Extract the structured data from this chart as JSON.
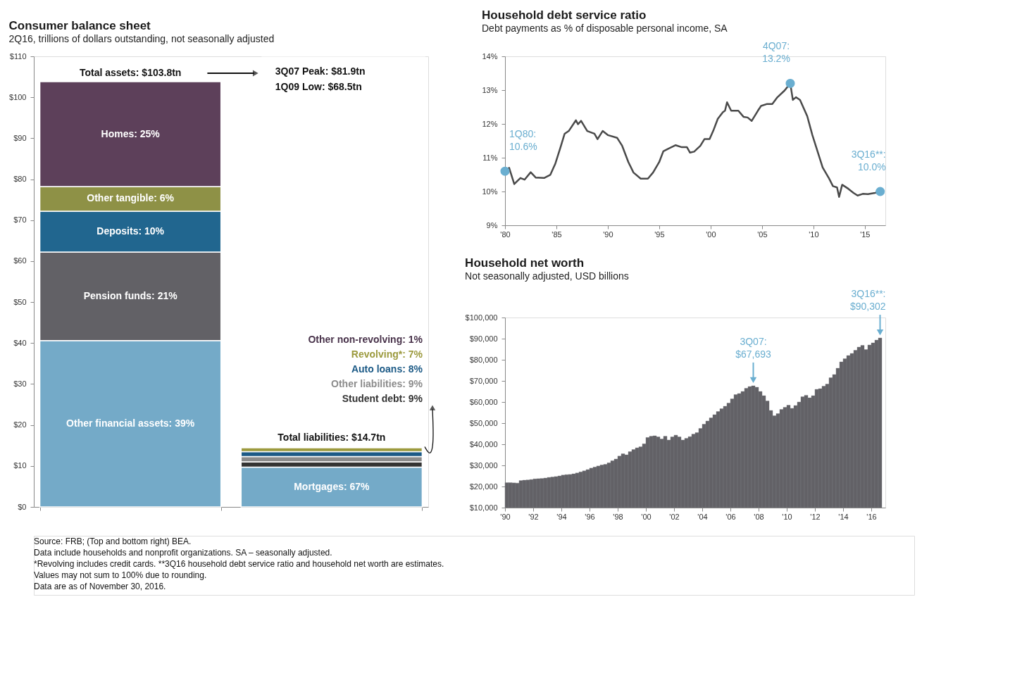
{
  "chart_data": [
    {
      "type": "bar",
      "stacked": true,
      "title": "Consumer balance sheet",
      "subtitle": "2Q16, trillions of dollars outstanding, not seasonally adjusted",
      "categories": [
        null,
        null
      ],
      "series": [
        {
          "name": "Other financial assets: 39%",
          "color": "#74aac8",
          "values": [
            40.6,
            null
          ]
        },
        {
          "name": "Pension funds: 21%",
          "color": "#626166",
          "values": [
            21.6,
            null
          ]
        },
        {
          "name": "Deposits: 10%",
          "color": "#21668f",
          "values": [
            10.0,
            null
          ]
        },
        {
          "name": "Other tangible: 6%",
          "color": "#8e9146",
          "values": [
            6.0,
            null
          ]
        },
        {
          "name": "Homes: 25%",
          "color": "#5d405a",
          "values": [
            25.6,
            null
          ]
        },
        {
          "name": "Mortgages: 67%",
          "color": "#74aac8",
          "values": [
            null,
            9.7
          ]
        },
        {
          "name": "Student debt: 9%",
          "color": "#333333",
          "values": [
            null,
            1.3
          ]
        },
        {
          "name": "Other liabilities: 9%",
          "color": "#8c8c8c",
          "values": [
            null,
            1.3
          ]
        },
        {
          "name": "Auto loans: 8%",
          "color": "#1c5a86",
          "values": [
            null,
            1.2
          ]
        },
        {
          "name": "Revolving*: 7%",
          "color": "#9c9a3e",
          "values": [
            null,
            1.0
          ]
        },
        {
          "name": "Other non-revolving: 1%",
          "color": "#48324a",
          "values": [
            null,
            0.2
          ]
        }
      ],
      "totals": [
        "Total assets: $103.8tn",
        "Total liabilities: $14.7tn"
      ],
      "ylim": [
        0,
        110
      ],
      "yticks": [
        {
          "value": 0,
          "label": "$0"
        },
        {
          "value": 10,
          "label": "$10"
        },
        {
          "value": 20,
          "label": "$20"
        },
        {
          "value": 30,
          "label": "$30"
        },
        {
          "value": 40,
          "label": "$40"
        },
        {
          "value": 50,
          "label": "$50"
        },
        {
          "value": 60,
          "label": "$60"
        },
        {
          "value": 70,
          "label": "$70"
        },
        {
          "value": 80,
          "label": "$80"
        },
        {
          "value": 90,
          "label": "$90"
        },
        {
          "value": 100,
          "label": "$100"
        },
        {
          "value": 110,
          "label": "$110"
        }
      ],
      "tick_labels": "y",
      "grid": false,
      "annotations": [
        "3Q07 Peak: $81.9tn",
        "1Q09 Low:  $68.5tn",
        "Source: FRB; (Top and bottom right) BEA.",
        "Data include households and nonprofit organizations. SA – seasonally adjusted.",
        "*Revolving includes credit cards. **3Q16 household debt service ratio and household net worth are estimates.",
        "Values may not sum to 100% due to rounding.",
        "Data are as of November 30, 2016."
      ]
    },
    {
      "type": "line",
      "title": "Household debt service ratio",
      "subtitle": "Debt payments as % of disposable personal income, SA",
      "xlim": [
        1980,
        2017
      ],
      "xticks": [
        {
          "value": 1980,
          "label": "'80"
        },
        {
          "value": 1985,
          "label": "'85"
        },
        {
          "value": 1990,
          "label": "'90"
        },
        {
          "value": 1995,
          "label": "'95"
        },
        {
          "value": 2000,
          "label": "'00"
        },
        {
          "value": 2005,
          "label": "'05"
        },
        {
          "value": 2010,
          "label": "'10"
        },
        {
          "value": 2015,
          "label": "'15"
        }
      ],
      "ylim": [
        9,
        14
      ],
      "yticks": [
        {
          "value": 9,
          "label": "9%"
        },
        {
          "value": 10,
          "label": "10%"
        },
        {
          "value": 11,
          "label": "11%"
        },
        {
          "value": 12,
          "label": "12%"
        },
        {
          "value": 13,
          "label": "13%"
        },
        {
          "value": 14,
          "label": "14%"
        }
      ],
      "grid": false,
      "line_style": "solid",
      "series": [
        {
          "type": "line",
          "color": "#4a4a4a",
          "x": [
            1980,
            1980.4,
            1980.9,
            1981.5,
            1981.9,
            1982.5,
            1983.0,
            1983.8,
            1984.4,
            1984.9,
            1985.4,
            1985.8,
            1986.2,
            1986.9,
            1987.1,
            1987.4,
            1988.0,
            1988.7,
            1989.0,
            1989.5,
            1990.0,
            1990.9,
            1991.4,
            1992.0,
            1992.5,
            1993.2,
            1993.9,
            1994.4,
            1995.0,
            1995.4,
            1995.9,
            1996.6,
            1997.2,
            1997.7,
            1998.0,
            1998.4,
            1999.0,
            1999.4,
            1999.9,
            2000.3,
            2000.7,
            2001.2,
            2001.4,
            2001.6,
            2002.0,
            2002.7,
            2003.2,
            2003.6,
            2004.0,
            2004.6,
            2004.9,
            2005.5,
            2006.0,
            2006.5,
            2007.2,
            2007.75,
            2008.0,
            2008.3,
            2008.7,
            2009.4,
            2009.9,
            2010.4,
            2010.9,
            2011.5,
            2011.9,
            2012.3,
            2012.5,
            2012.8,
            2013.4,
            2013.9,
            2014.3,
            2014.8,
            2015.3,
            2016.0,
            2016.5
          ],
          "values": [
            10.6,
            10.7,
            10.22,
            10.4,
            10.35,
            10.57,
            10.41,
            10.4,
            10.49,
            10.83,
            11.31,
            11.71,
            11.79,
            12.11,
            11.99,
            12.09,
            11.79,
            11.71,
            11.55,
            11.79,
            11.67,
            11.59,
            11.35,
            10.87,
            10.56,
            10.38,
            10.38,
            10.56,
            10.87,
            11.19,
            11.27,
            11.37,
            11.31,
            11.31,
            11.15,
            11.18,
            11.35,
            11.55,
            11.55,
            11.83,
            12.15,
            12.35,
            12.39,
            12.64,
            12.39,
            12.39,
            12.21,
            12.19,
            12.09,
            12.39,
            12.53,
            12.59,
            12.59,
            12.79,
            12.99,
            13.2,
            12.71,
            12.79,
            12.71,
            12.23,
            11.67,
            11.19,
            10.71,
            10.4,
            10.16,
            10.12,
            9.84,
            10.2,
            10.08,
            9.96,
            9.88,
            9.93,
            9.92,
            9.96,
            10.0
          ]
        },
        {
          "type": "scatter",
          "color": "#6aaed0",
          "x": [
            1980,
            2007.75,
            2016.5
          ],
          "values": [
            10.6,
            13.2,
            10.0
          ]
        }
      ],
      "annotations": [
        {
          "text": "1Q80: 10.6%",
          "x": 1980,
          "y": 10.6
        },
        {
          "text": "4Q07: 13.2%",
          "x": 2007.75,
          "y": 13.2
        },
        {
          "text": "3Q16**: 10.0%",
          "x": 2016.5,
          "y": 10.0
        }
      ]
    },
    {
      "type": "bar",
      "title": "Household net worth",
      "subtitle": "Not seasonally adjusted, USD billions",
      "color": "#626166",
      "x": [
        1990,
        1990.25,
        1990.5,
        1990.75,
        1991,
        1991.25,
        1991.5,
        1991.75,
        1992,
        1992.25,
        1992.5,
        1992.75,
        1993,
        1993.25,
        1993.5,
        1993.75,
        1994,
        1994.25,
        1994.5,
        1994.75,
        1995,
        1995.25,
        1995.5,
        1995.75,
        1996,
        1996.25,
        1996.5,
        1996.75,
        1997,
        1997.25,
        1997.5,
        1997.75,
        1998,
        1998.25,
        1998.5,
        1998.75,
        1999,
        1999.25,
        1999.5,
        1999.75,
        2000,
        2000.25,
        2000.5,
        2000.75,
        2001,
        2001.25,
        2001.5,
        2001.75,
        2002,
        2002.25,
        2002.5,
        2002.75,
        2003,
        2003.25,
        2003.5,
        2003.75,
        2004,
        2004.25,
        2004.5,
        2004.75,
        2005,
        2005.25,
        2005.5,
        2005.75,
        2006,
        2006.25,
        2006.5,
        2006.75,
        2007,
        2007.25,
        2007.5,
        2007.75,
        2008,
        2008.25,
        2008.5,
        2008.75,
        2009,
        2009.25,
        2009.5,
        2009.75,
        2010,
        2010.25,
        2010.5,
        2010.75,
        2011,
        2011.25,
        2011.5,
        2011.75,
        2012,
        2012.25,
        2012.5,
        2012.75,
        2013,
        2013.25,
        2013.5,
        2013.75,
        2014,
        2014.25,
        2014.5,
        2014.75,
        2015,
        2015.25,
        2015.5,
        2015.75,
        2016,
        2016.25,
        2016.5
      ],
      "values": [
        21800,
        21800,
        21700,
        21600,
        22800,
        23000,
        23100,
        23300,
        23600,
        23700,
        23800,
        24000,
        24300,
        24500,
        24700,
        25000,
        25400,
        25600,
        25700,
        26000,
        26400,
        26900,
        27400,
        28000,
        28700,
        29200,
        29700,
        30200,
        30500,
        31200,
        32200,
        33000,
        34400,
        35500,
        35000,
        36500,
        37500,
        38300,
        38800,
        40200,
        43200,
        43800,
        44000,
        43500,
        42500,
        43800,
        42000,
        43500,
        44300,
        43500,
        42000,
        42800,
        43600,
        44800,
        45500,
        47500,
        49500,
        51000,
        52500,
        54000,
        55500,
        56800,
        58000,
        59500,
        61500,
        63500,
        64000,
        65000,
        66500,
        67300,
        67693,
        67000,
        65000,
        63000,
        60500,
        56000,
        53500,
        54500,
        56500,
        57500,
        58500,
        57000,
        58300,
        60000,
        62500,
        63200,
        62000,
        63000,
        66000,
        66300,
        67500,
        68500,
        71500,
        73000,
        76000,
        79000,
        80500,
        82000,
        83000,
        84500,
        86000,
        86800,
        84800,
        87000,
        88000,
        89300,
        90302
      ],
      "xlim": [
        1990,
        2017
      ],
      "xticks": [
        {
          "value": 1990,
          "label": "'90"
        },
        {
          "value": 1992,
          "label": "'92"
        },
        {
          "value": 1994,
          "label": "'94"
        },
        {
          "value": 1996,
          "label": "'96"
        },
        {
          "value": 1998,
          "label": "'98"
        },
        {
          "value": 2000,
          "label": "'00"
        },
        {
          "value": 2002,
          "label": "'02"
        },
        {
          "value": 2004,
          "label": "'04"
        },
        {
          "value": 2006,
          "label": "'06"
        },
        {
          "value": 2008,
          "label": "'08"
        },
        {
          "value": 2010,
          "label": "'10"
        },
        {
          "value": 2012,
          "label": "'12"
        },
        {
          "value": 2014,
          "label": "'14"
        },
        {
          "value": 2016,
          "label": "'16"
        }
      ],
      "ylim": [
        10000,
        100000
      ],
      "yticks": [
        {
          "value": 10000,
          "label": "$10,000"
        },
        {
          "value": 20000,
          "label": "$20,000"
        },
        {
          "value": 30000,
          "label": "$30,000"
        },
        {
          "value": 40000,
          "label": "$40,000"
        },
        {
          "value": 50000,
          "label": "$50,000"
        },
        {
          "value": 60000,
          "label": "$60,000"
        },
        {
          "value": 70000,
          "label": "$70,000"
        },
        {
          "value": 80000,
          "label": "$80,000"
        },
        {
          "value": 90000,
          "label": "$90,000"
        },
        {
          "value": 100000,
          "label": "$100,000"
        }
      ],
      "grid": false,
      "annotations": [
        {
          "text": "3Q07: $67,693",
          "x": 2007.5,
          "y": 67693
        },
        {
          "text": "3Q16**: $90,302",
          "x": 2016.5,
          "y": 90302
        }
      ]
    }
  ]
}
